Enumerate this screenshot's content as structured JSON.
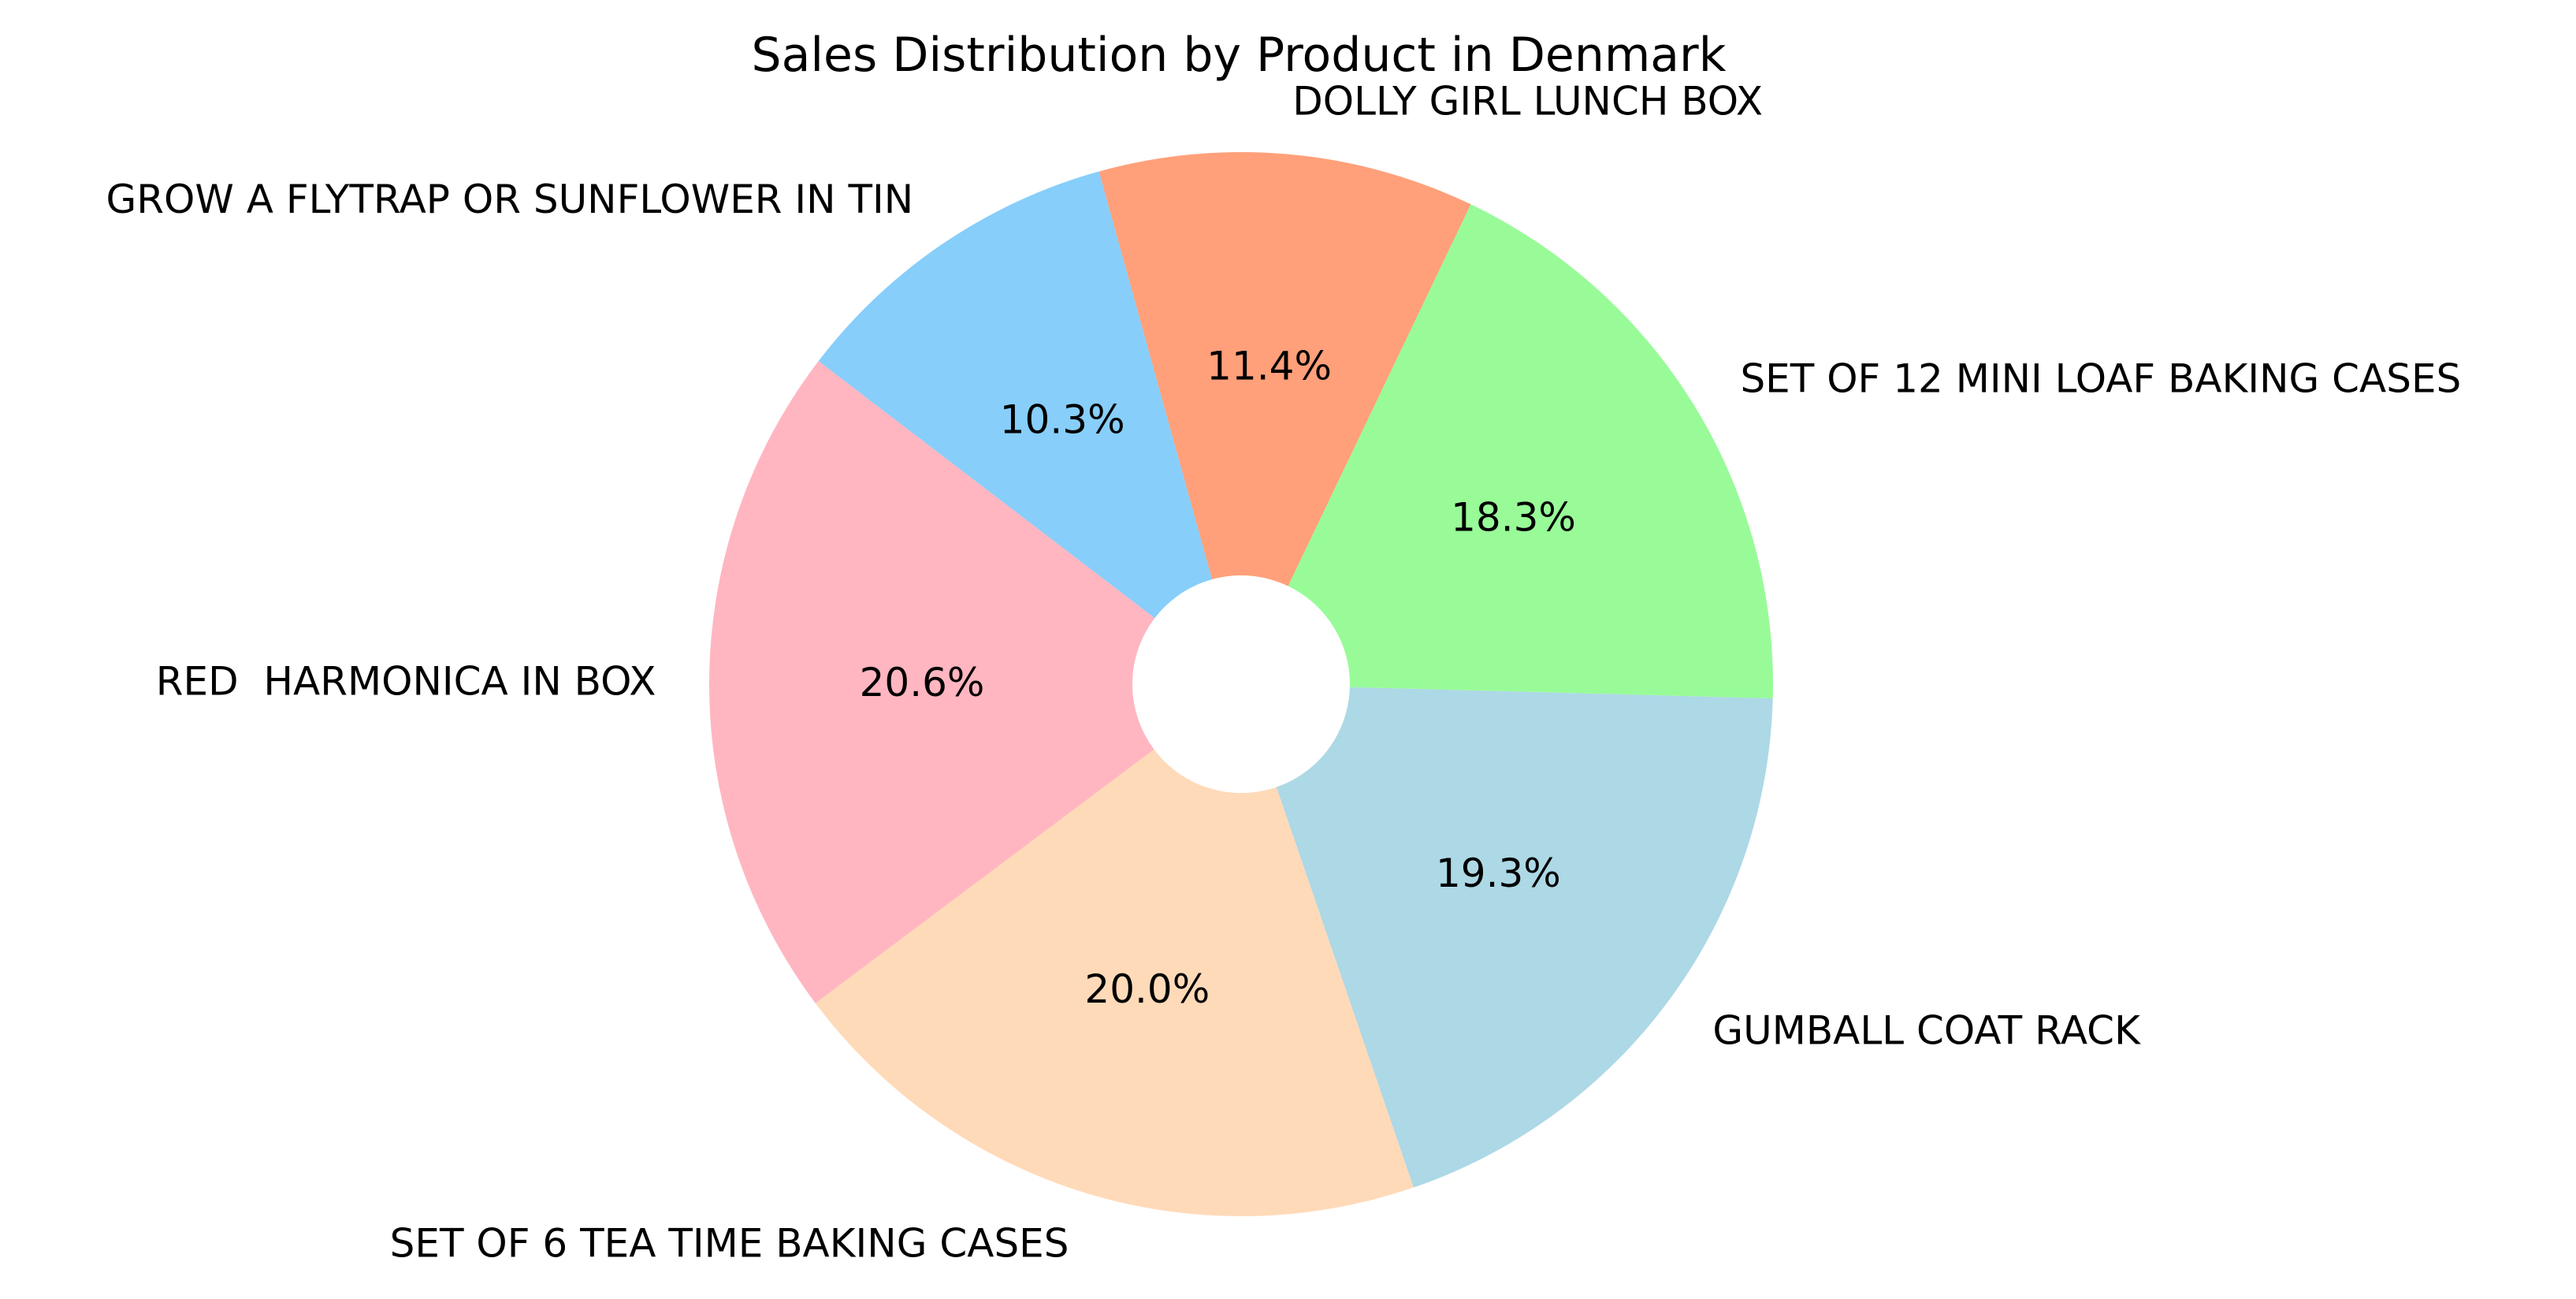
{
  "chart_data": {
    "type": "pie",
    "title": "Sales Distribution by Product in Denmark",
    "start_angle_deg": 105.5,
    "direction": "counterclockwise",
    "donut_hole": true,
    "slices": [
      {
        "label": "GROW A FLYTRAP OR SUNFLOWER IN TIN",
        "value": 10.3,
        "pct_label": "10.3%",
        "color": "#87CEFA"
      },
      {
        "label": "RED  HARMONICA IN BOX",
        "value": 20.6,
        "pct_label": "20.6%",
        "color": "#FFB6C1"
      },
      {
        "label": "SET OF 6 TEA TIME BAKING CASES",
        "value": 20.0,
        "pct_label": "20.0%",
        "color": "#FFDAB9"
      },
      {
        "label": "GUMBALL COAT RACK",
        "value": 19.3,
        "pct_label": "19.3%",
        "color": "#ADD8E6"
      },
      {
        "label": "SET OF 12 MINI LOAF BAKING CASES",
        "value": 18.3,
        "pct_label": "18.3%",
        "color": "#98FB98"
      },
      {
        "label": "DOLLY GIRL LUNCH BOX",
        "value": 11.4,
        "pct_label": "11.4%",
        "color": "#FFA07A"
      }
    ]
  }
}
